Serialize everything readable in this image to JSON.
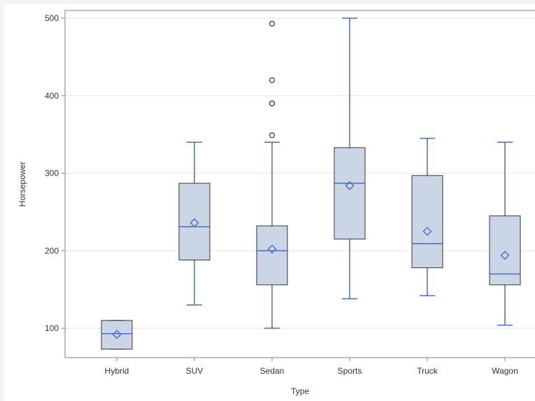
{
  "chart_data": {
    "type": "box",
    "xlabel": "Type",
    "ylabel": "Horsepower",
    "ylim": [
      63,
      510
    ],
    "yticks": [
      100,
      200,
      300,
      400,
      500
    ],
    "grid": "horizontal",
    "categories": [
      "Hybrid",
      "SUV",
      "Sedan",
      "Sports",
      "Truck",
      "Wagon"
    ],
    "boxes": [
      {
        "category": "Hybrid",
        "whisker_low": 73,
        "q1": 73,
        "median": 93,
        "q3": 110,
        "whisker_high": 110,
        "mean": 92,
        "outliers": []
      },
      {
        "category": "SUV",
        "whisker_low": 130,
        "q1": 188,
        "median": 231,
        "q3": 287,
        "whisker_high": 340,
        "mean": 236,
        "outliers": []
      },
      {
        "category": "Sedan",
        "whisker_low": 100,
        "q1": 156,
        "median": 200,
        "q3": 232,
        "whisker_high": 340,
        "mean": 202,
        "outliers": [
          349,
          390,
          390,
          420,
          493
        ]
      },
      {
        "category": "Sports",
        "whisker_low": 138,
        "q1": 215,
        "median": 287,
        "q3": 333,
        "whisker_high": 500,
        "mean": 284,
        "outliers": []
      },
      {
        "category": "Truck",
        "whisker_low": 142,
        "q1": 178,
        "median": 209,
        "q3": 297,
        "whisker_high": 345,
        "mean": 225,
        "outliers": []
      },
      {
        "category": "Wagon",
        "whisker_low": 104,
        "q1": 156,
        "median": 170,
        "q3": 245,
        "whisker_high": 340,
        "mean": 194,
        "outliers": []
      }
    ],
    "colors": {
      "box_fill": "#cad5e6",
      "box_border": "#333333",
      "whisker": "#4a6cc4",
      "median": "#4a6cc4",
      "mean_marker": "#4a6cc4",
      "outlier": "#333333",
      "grid": "#e6e6e6",
      "axis": "#7f7f7f"
    }
  }
}
